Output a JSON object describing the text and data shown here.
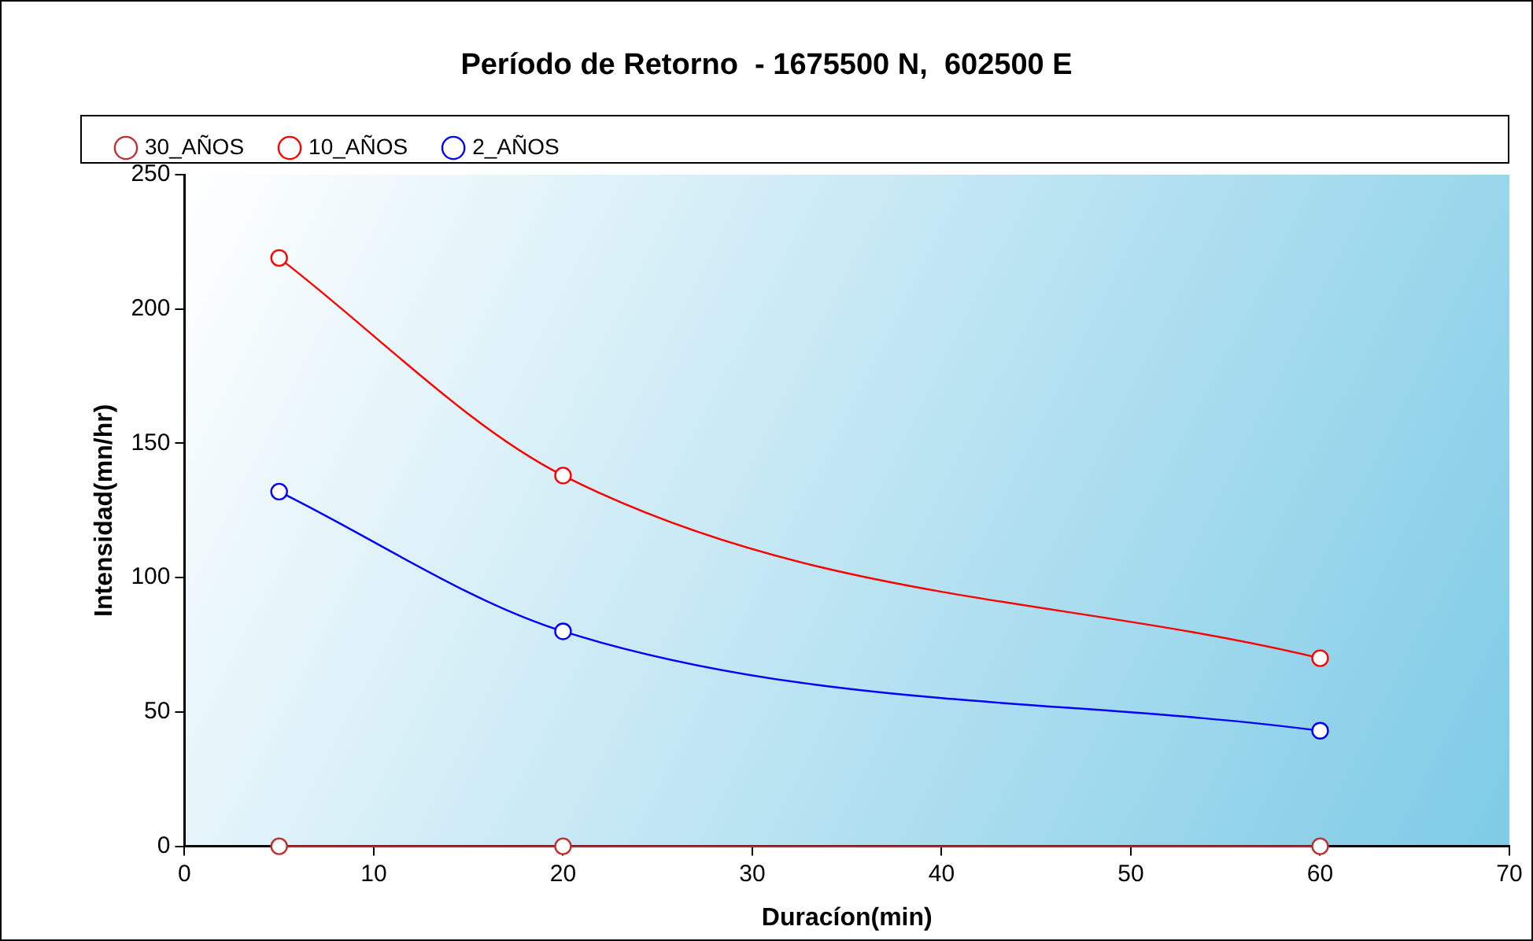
{
  "chart_data": {
    "type": "line",
    "title": "Período de Retorno  - 1675500 N,  602500 E",
    "xlabel": "Duracíon(min)",
    "ylabel": "Intensidad(mn/hr)",
    "x": [
      5,
      20,
      60
    ],
    "series": [
      {
        "name": "30_AÑOS",
        "color": "#c03030",
        "values": [
          0,
          0,
          0
        ]
      },
      {
        "name": "10_AÑOS",
        "color": "#ff0000",
        "values": [
          219,
          138,
          70
        ]
      },
      {
        "name": "2_AÑOS",
        "color": "#0000ff",
        "values": [
          132,
          80,
          43
        ]
      }
    ],
    "xlim": [
      0,
      70
    ],
    "xticks": [
      0,
      10,
      20,
      30,
      40,
      50,
      60,
      70
    ],
    "ylim": [
      0,
      250
    ],
    "yticks": [
      0,
      50,
      100,
      150,
      200,
      250
    ],
    "grid": false,
    "legend": "top left",
    "marker": "circle",
    "line_style": "solid"
  }
}
